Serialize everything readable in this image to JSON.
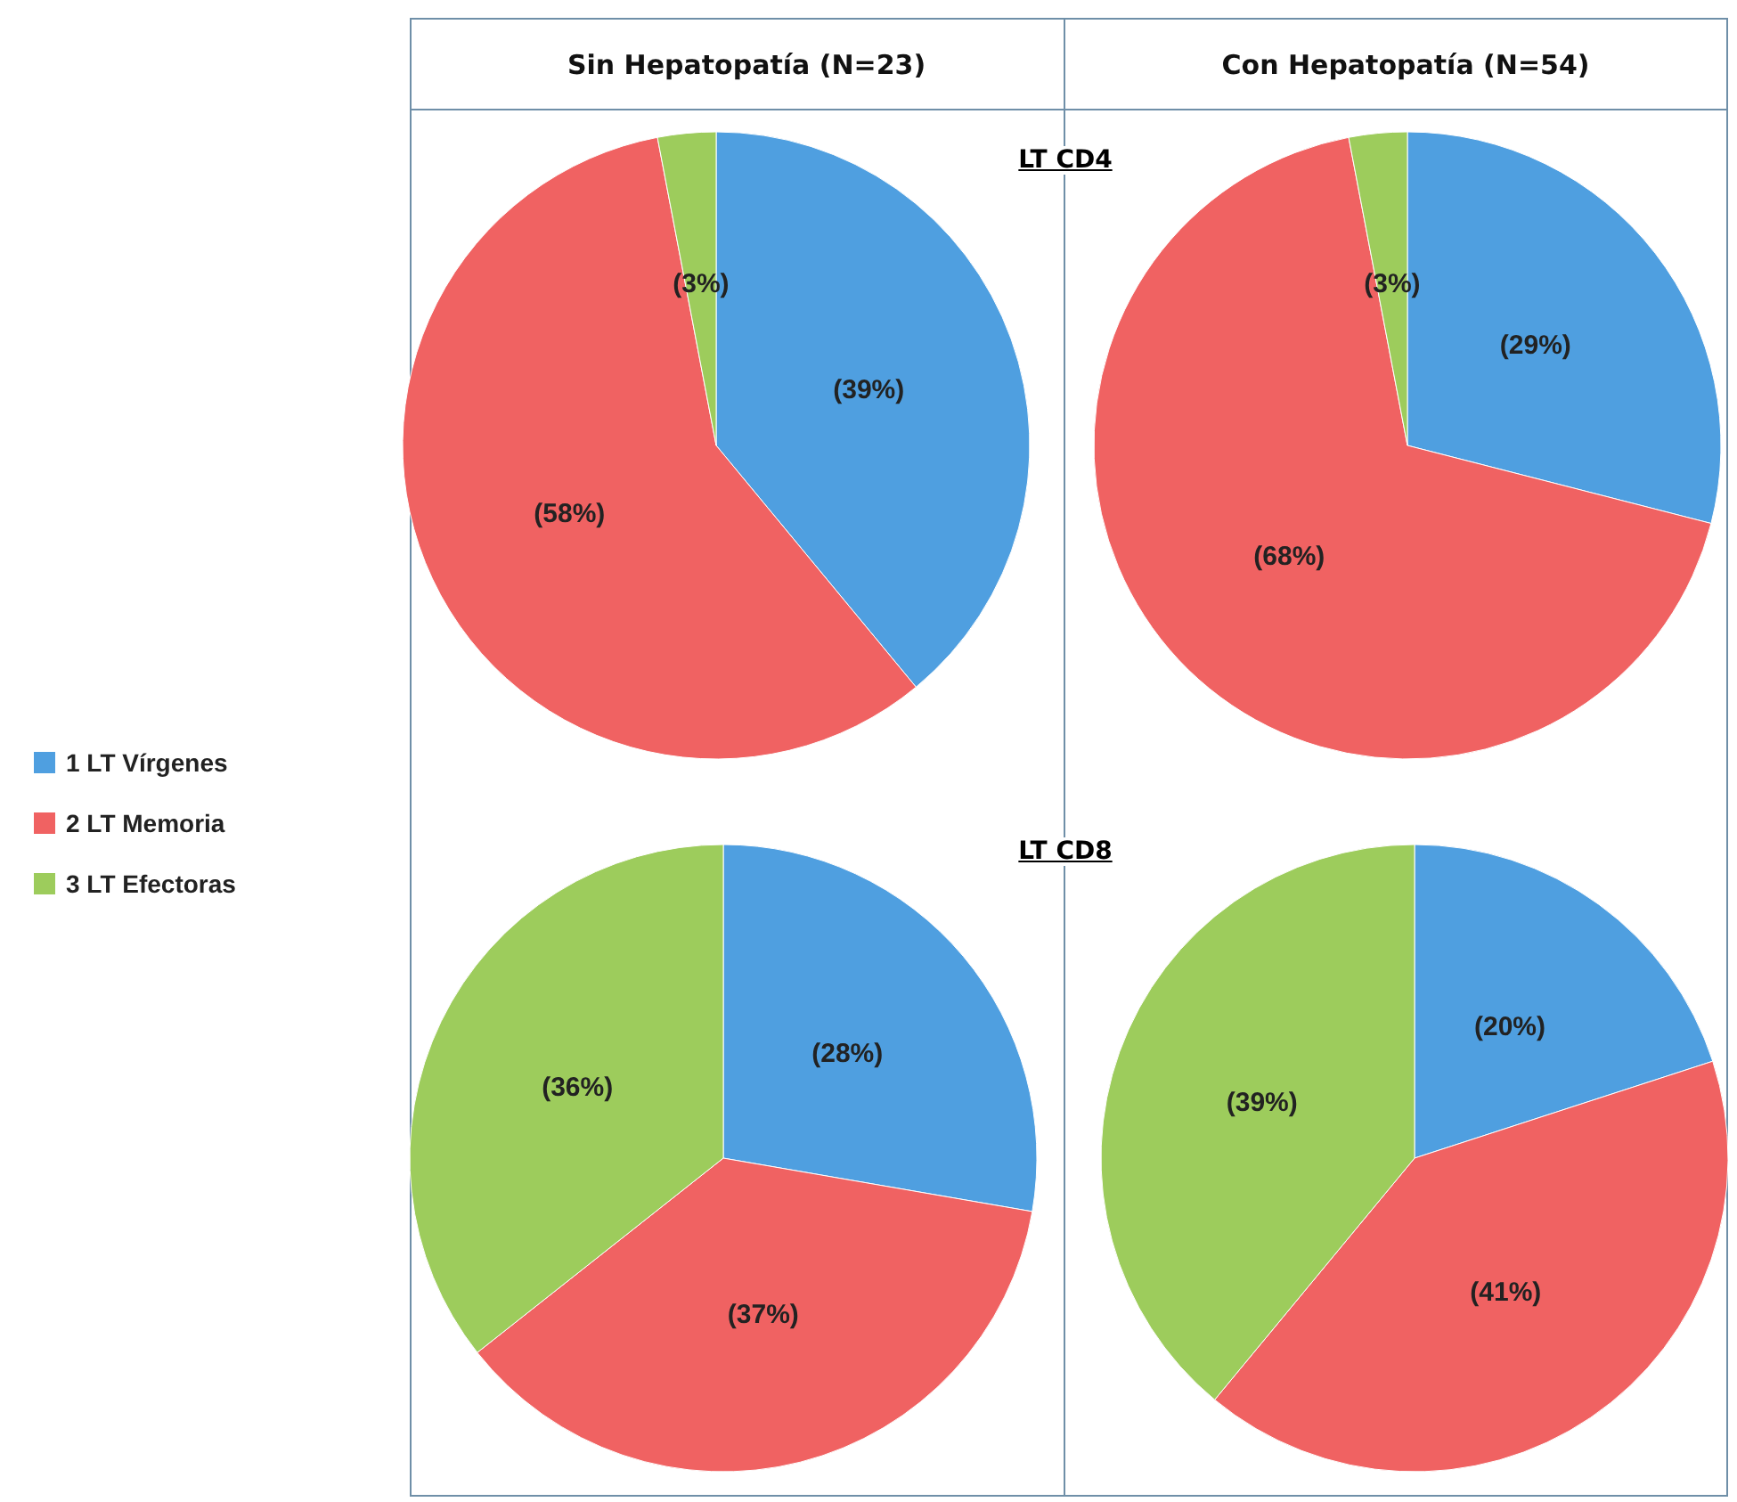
{
  "chart_data": [
    {
      "type": "pie",
      "title": "Sin Hepatopatía (N=23)",
      "annotations": [
        "LT CD4"
      ],
      "categories": [
        "1 LT Vírgenes",
        "2 LT Memoria",
        "3 LT Efectoras"
      ],
      "values": [
        39,
        58,
        3
      ],
      "value_labels": [
        "(39%)",
        "(58%)",
        "(3%)"
      ],
      "colors": [
        "#4f9fe0",
        "#f06262",
        "#9dcc5c"
      ],
      "legend": "left"
    },
    {
      "type": "pie",
      "title": "Con Hepatopatía (N=54)",
      "categories": [
        null,
        null,
        null
      ],
      "values": [
        29,
        68,
        3
      ],
      "value_labels": [
        "(29%)",
        "(68%)",
        "(3%)"
      ],
      "colors": [
        "#4f9fe0",
        "#f06262",
        "#9dcc5c"
      ]
    },
    {
      "type": "pie",
      "annotations": [
        "LT CD8"
      ],
      "categories": [
        null,
        null,
        null
      ],
      "values": [
        28,
        37,
        36
      ],
      "value_labels": [
        "(28%)",
        "(37%)",
        "(36%)"
      ],
      "colors": [
        "#4f9fe0",
        "#f06262",
        "#9dcc5c"
      ]
    },
    {
      "type": "pie",
      "categories": [
        null,
        null,
        null
      ],
      "values": [
        20,
        41,
        39
      ],
      "value_labels": [
        "(20%)",
        "(41%)",
        "(39%)"
      ],
      "colors": [
        "#4f9fe0",
        "#f06262",
        "#9dcc5c"
      ]
    }
  ]
}
